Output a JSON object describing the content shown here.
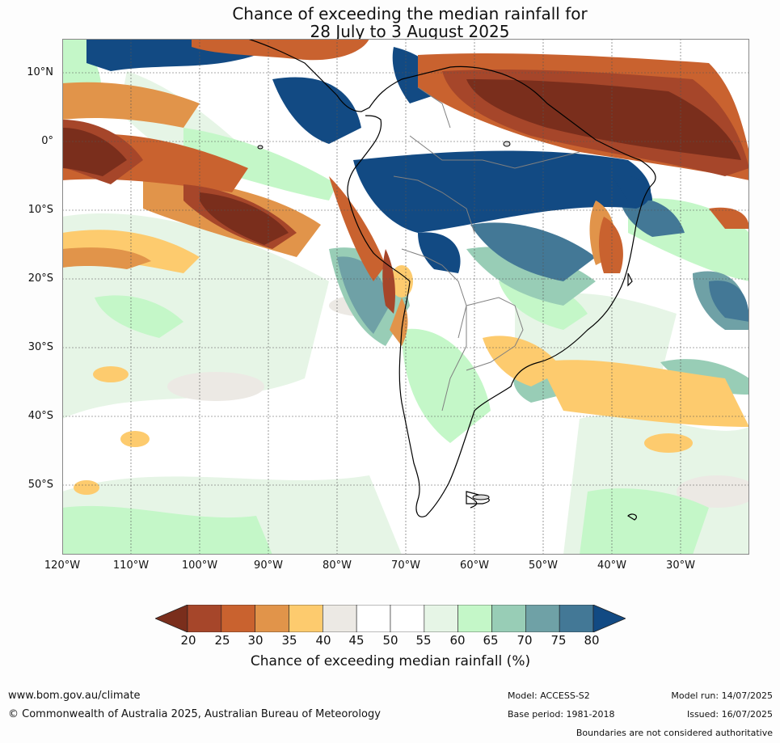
{
  "title": {
    "line1": "Chance of exceeding the median rainfall for",
    "line2": "28 July to 3 August 2025"
  },
  "map": {
    "lat_labels": [
      "10°N",
      "0°",
      "10°S",
      "20°S",
      "30°S",
      "40°S",
      "50°S"
    ],
    "lon_labels": [
      "120°W",
      "110°W",
      "100°W",
      "90°W",
      "80°W",
      "70°W",
      "60°W",
      "50°W",
      "40°W",
      "30°W"
    ],
    "palette": {
      "below_20": "#7a2e1c",
      "20_25": "#a6462a",
      "25_30": "#c9622f",
      "30_35": "#e1944a",
      "35_40": "#fdcb6e",
      "40_45": "#ece9e4",
      "45_55": "#ffffff",
      "55_60": "#e6f5e6",
      "60_65": "#c4f7c8",
      "65_70": "#98cdb6",
      "70_75": "#6fa1a6",
      "75_80": "#437896",
      "above_80": "#124a83"
    }
  },
  "colorbar": {
    "ticks": [
      "20",
      "25",
      "30",
      "35",
      "40",
      "45",
      "50",
      "55",
      "60",
      "65",
      "70",
      "75",
      "80"
    ],
    "colors": [
      "#a6462a",
      "#c9622f",
      "#e1944a",
      "#fdcb6e",
      "#ece9e4",
      "#ffffff",
      "#ffffff",
      "#e6f5e6",
      "#c4f7c8",
      "#98cdb6",
      "#6fa1a6",
      "#437896"
    ],
    "low_color": "#7a2e1c",
    "high_color": "#124a83",
    "label": "Chance of exceeding median rainfall (%)"
  },
  "footer": {
    "website": "www.bom.gov.au/climate",
    "copyright": "© Commonwealth of Australia 2025, Australian Bureau of Meteorology",
    "model": "Model: ACCESS-S2",
    "base_period": "Base period: 1981-2018",
    "model_run": "Model run: 14/07/2025",
    "issued": "Issued: 16/07/2025",
    "disclaimer": "Boundaries are not considered authoritative"
  }
}
